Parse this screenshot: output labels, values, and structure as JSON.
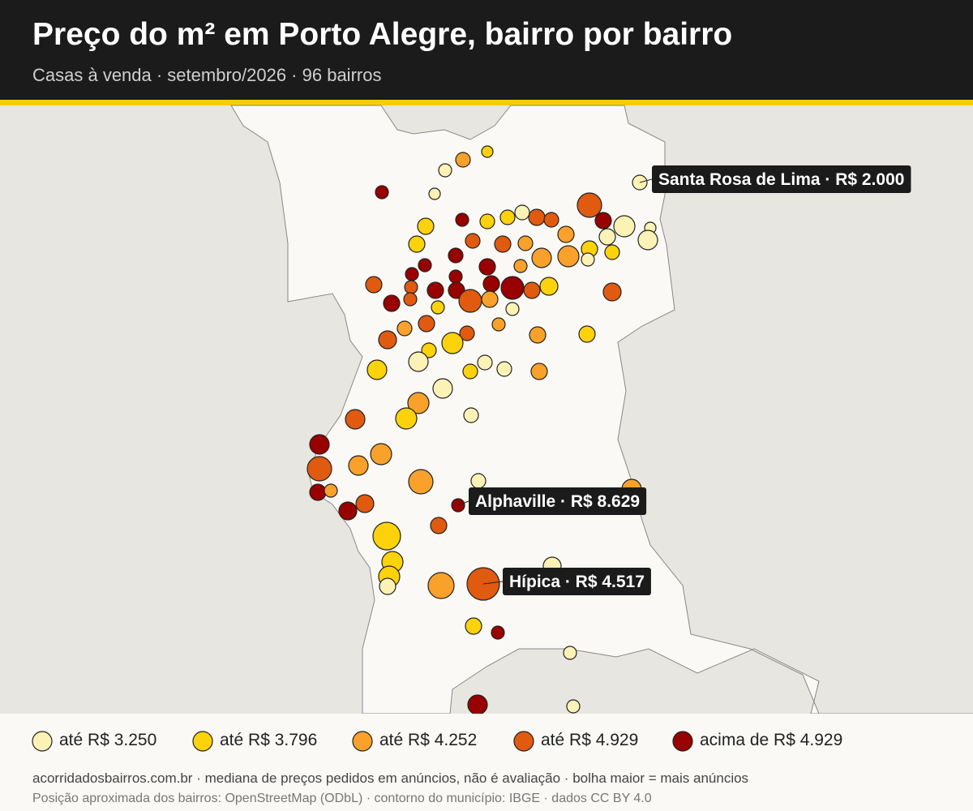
{
  "header": {
    "title": "Preço do m² em Porto Alegre, bairro por bairro",
    "subtitle": "Casas à venda · setembro/2026 · 96 bairros"
  },
  "annotations": [
    {
      "label": "Santa Rosa de Lima · R$ 2.000"
    },
    {
      "label": "Alphaville · R$ 8.629"
    },
    {
      "label": "Hípica · R$ 4.517"
    }
  ],
  "legend": [
    {
      "label": "até R$ 3.250",
      "color": "#fdf2b5"
    },
    {
      "label": "até R$ 3.796",
      "color": "#fcd20c"
    },
    {
      "label": "até R$ 4.252",
      "color": "#f9a12a"
    },
    {
      "label": "até R$ 4.929",
      "color": "#e05a10"
    },
    {
      "label": "acima de R$ 4.929",
      "color": "#990000"
    }
  ],
  "footer": {
    "note": "acorridadosbairros.com.br · mediana de preços pedidos em anúncios, não é avaliação · bolha maior = mais anúncios",
    "source": "Posição aproximada dos bairros: OpenStreetMap (ODbL) · contorno do município: IBGE · dados CC BY 4.0"
  }
}
